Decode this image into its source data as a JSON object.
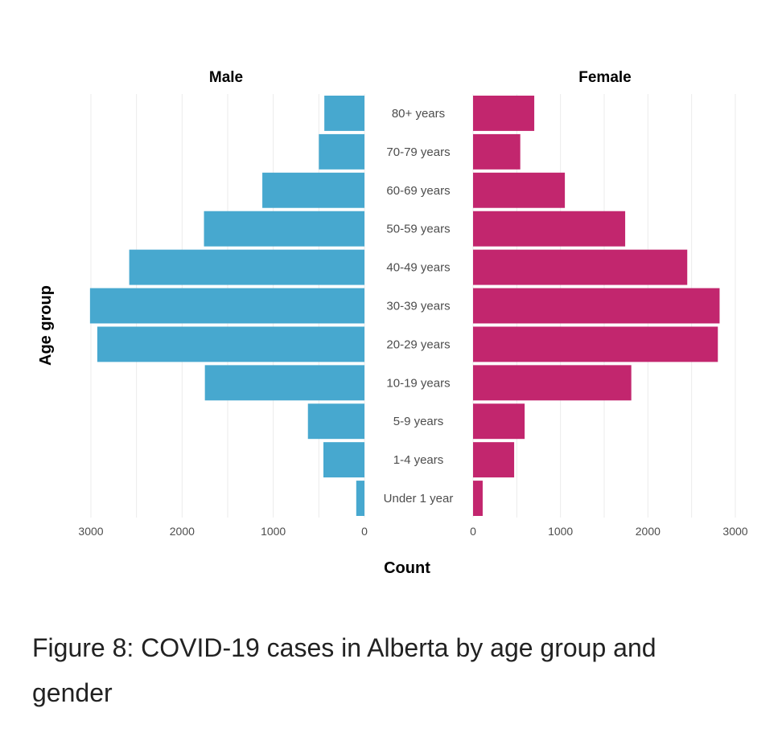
{
  "caption": "Figure 8: COVID-19 cases in Alberta by age group and gender",
  "chart_data": {
    "type": "bar",
    "orientation": "horizontal",
    "layout": "population-pyramid",
    "categories": [
      "80+ years",
      "70-79 years",
      "60-69 years",
      "50-59 years",
      "40-49 years",
      "30-39 years",
      "20-29 years",
      "10-19 years",
      "5-9 years",
      "1-4 years",
      "Under 1 year"
    ],
    "series": [
      {
        "name": "Male",
        "color": "#47A8CF",
        "values": [
          440,
          500,
          1120,
          1760,
          2580,
          3010,
          2930,
          1750,
          620,
          450,
          90
        ]
      },
      {
        "name": "Female",
        "color": "#C2266E",
        "values": [
          700,
          540,
          1050,
          1740,
          2450,
          2820,
          2800,
          1810,
          590,
          470,
          110
        ]
      }
    ],
    "panel_titles": [
      "Male",
      "Female"
    ],
    "xlabel": "Count",
    "ylabel": "Age group",
    "xlim": [
      0,
      3000
    ],
    "xticks": [
      0,
      1000,
      2000,
      3000
    ],
    "tick_labels": {
      "male": [
        "3000",
        "2000",
        "1000",
        "0"
      ],
      "female": [
        "0",
        "1000",
        "2000",
        "3000"
      ]
    },
    "grid": true,
    "legend": "none"
  }
}
